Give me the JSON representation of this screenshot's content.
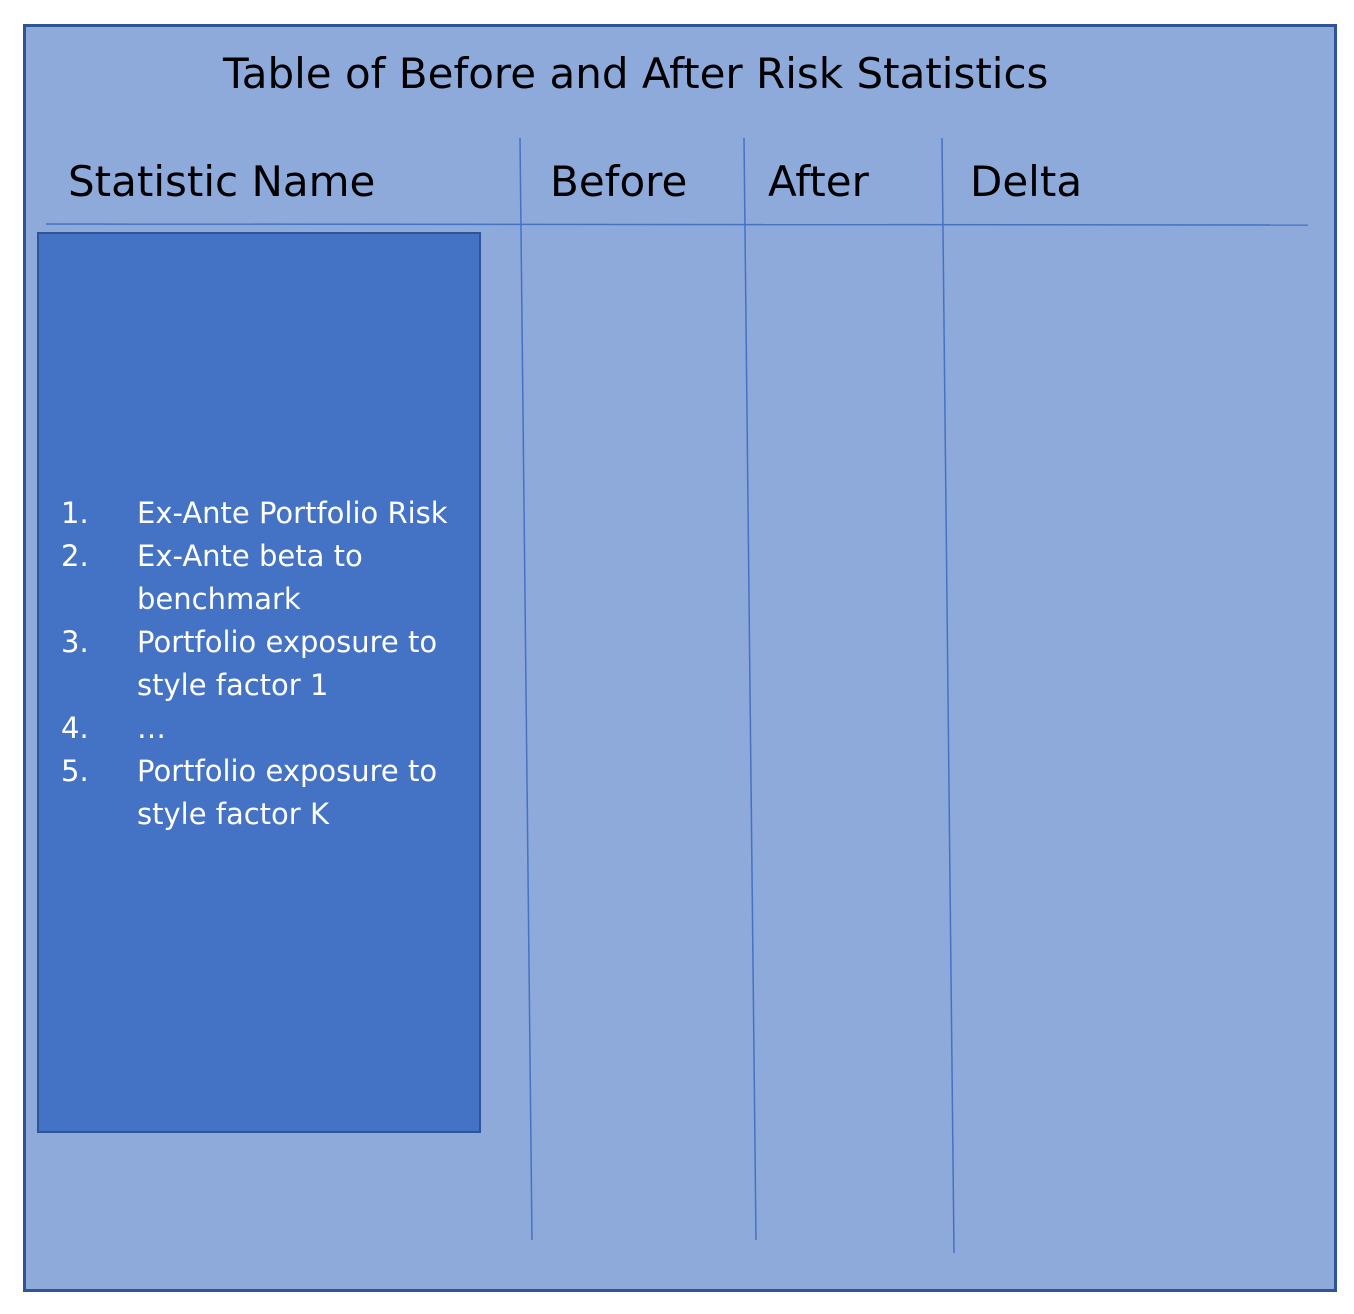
{
  "title": "Table of Before and After Risk Statistics",
  "columns": {
    "name": "Statistic Name",
    "before": "Before",
    "after": "After",
    "delta": "Delta"
  },
  "statistics": [
    {
      "number": "1.",
      "label": "Ex-Ante Portfolio Risk"
    },
    {
      "number": "2.",
      "label": "Ex-Ante beta to benchmark"
    },
    {
      "number": "3.",
      "label": "Portfolio exposure to style factor 1"
    },
    {
      "number": "4.",
      "label": "…"
    },
    {
      "number": "5.",
      "label": "Portfolio exposure to style factor K"
    }
  ],
  "colors": {
    "background": "#8eaadb",
    "border": "#2f5597",
    "box_fill": "#4472c4",
    "line": "#4472c4",
    "text": "#000000",
    "box_text": "#ffffff"
  }
}
